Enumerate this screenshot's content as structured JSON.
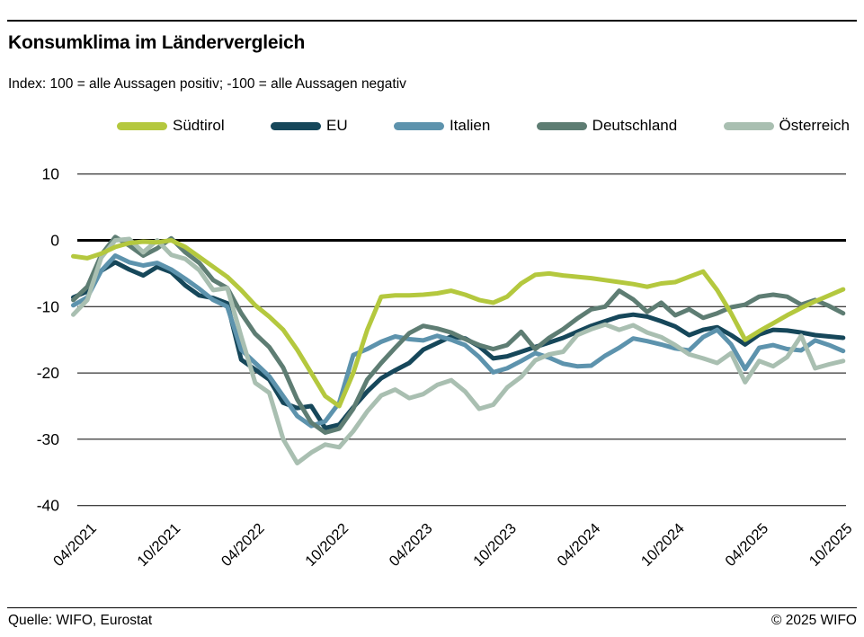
{
  "header": {
    "title": "Konsumklima im Ländervergleich",
    "subtitle": "Index: 100 = alle Aussagen positiv; -100 =  alle Aussagen negativ"
  },
  "footer": {
    "source": "Quelle: WIFO, Eurostat",
    "copyright": "© 2025 WIFO"
  },
  "chart_data": {
    "type": "line",
    "title": "Konsumklima im Ländervergleich",
    "legend_position": "top",
    "grid": "horizontal-only",
    "ylim": [
      -40,
      10
    ],
    "y_ticks": [
      10,
      0,
      -10,
      -20,
      -30,
      -40
    ],
    "zero_line_emphasized": true,
    "x_tick_labels": [
      "04/2021",
      "10/2021",
      "04/2022",
      "10/2022",
      "04/2023",
      "10/2023",
      "04/2024",
      "10/2024",
      "04/2025",
      "10/2025"
    ],
    "months": [
      "03/2021",
      "04/2021",
      "05/2021",
      "06/2021",
      "07/2021",
      "08/2021",
      "09/2021",
      "10/2021",
      "11/2021",
      "12/2021",
      "01/2022",
      "02/2022",
      "03/2022",
      "04/2022",
      "05/2022",
      "06/2022",
      "07/2022",
      "08/2022",
      "09/2022",
      "10/2022",
      "11/2022",
      "12/2022",
      "01/2023",
      "02/2023",
      "03/2023",
      "04/2023",
      "05/2023",
      "06/2023",
      "07/2023",
      "08/2023",
      "09/2023",
      "10/2023",
      "11/2023",
      "12/2023",
      "01/2024",
      "02/2024",
      "03/2024",
      "04/2024",
      "05/2024",
      "06/2024",
      "07/2024",
      "08/2024",
      "09/2024",
      "10/2024",
      "11/2024",
      "12/2024",
      "01/2025",
      "02/2025",
      "03/2025",
      "04/2025",
      "05/2025",
      "06/2025",
      "07/2025",
      "08/2025",
      "09/2025",
      "10/2025"
    ],
    "series": [
      {
        "name": "Südtirol",
        "color": "#b4c83e",
        "values": [
          -2.4,
          -2.7,
          -2.0,
          -1.0,
          -0.4,
          -0.2,
          -0.3,
          0.0,
          -1.0,
          -2.5,
          -4.0,
          -5.5,
          -7.5,
          -9.8,
          -11.5,
          -13.5,
          -16.5,
          -20.0,
          -23.5,
          -25.0,
          -20.0,
          -13.5,
          -8.5,
          -8.3,
          -8.3,
          -8.2,
          -8.0,
          -7.6,
          -8.2,
          -9.0,
          -9.4,
          -8.5,
          -6.5,
          -5.2,
          -5.0,
          -5.3,
          -5.5,
          -5.7,
          -6.0,
          -6.3,
          -6.6,
          -7.0,
          -6.5,
          -6.3,
          -5.5,
          -4.7,
          -7.5,
          -11.0,
          -15.0,
          -13.7,
          -12.5,
          -11.3,
          -10.2,
          -9.2,
          -8.3,
          -7.4
        ]
      },
      {
        "name": "EU",
        "color": "#16475a",
        "values": [
          -8.6,
          -7.7,
          -4.6,
          -3.3,
          -4.4,
          -5.3,
          -4.0,
          -4.8,
          -6.8,
          -8.3,
          -8.7,
          -9.5,
          -18.0,
          -19.5,
          -21.0,
          -24.5,
          -25.3,
          -25.0,
          -28.3,
          -27.8,
          -25.2,
          -22.8,
          -20.8,
          -19.6,
          -18.5,
          -16.5,
          -15.5,
          -14.5,
          -14.8,
          -16.0,
          -17.8,
          -17.5,
          -16.8,
          -16.1,
          -15.4,
          -14.7,
          -13.8,
          -12.9,
          -12.2,
          -11.5,
          -11.2,
          -11.5,
          -12.2,
          -13.0,
          -14.3,
          -13.5,
          -13.1,
          -14.3,
          -15.7,
          -14.2,
          -13.5,
          -13.6,
          -13.9,
          -14.3,
          -14.5,
          -14.7
        ]
      },
      {
        "name": "Italien",
        "color": "#5d93ad",
        "values": [
          -9.8,
          -8.6,
          -4.6,
          -2.3,
          -3.3,
          -3.8,
          -3.4,
          -4.4,
          -5.8,
          -7.3,
          -9.0,
          -10.0,
          -16.5,
          -18.5,
          -20.5,
          -23.5,
          -26.5,
          -28.0,
          -27.3,
          -24.5,
          -17.3,
          -16.4,
          -15.3,
          -14.5,
          -14.9,
          -15.1,
          -14.4,
          -15.0,
          -15.8,
          -17.6,
          -19.9,
          -19.3,
          -18.2,
          -17.0,
          -17.7,
          -18.6,
          -19.0,
          -18.9,
          -17.4,
          -16.2,
          -14.8,
          -15.2,
          -15.7,
          -16.3,
          -16.6,
          -14.6,
          -13.5,
          -15.7,
          -19.4,
          -16.2,
          -15.8,
          -16.4,
          -16.6,
          -15.1,
          -15.8,
          -16.7
        ]
      },
      {
        "name": "Deutschland",
        "color": "#5e7d73",
        "values": [
          -9.0,
          -7.0,
          -2.2,
          0.5,
          -0.8,
          -2.3,
          -1.2,
          0.3,
          -1.8,
          -3.4,
          -6.0,
          -7.2,
          -11.0,
          -14.1,
          -16.1,
          -19.2,
          -24.0,
          -27.5,
          -29.0,
          -28.4,
          -25.4,
          -21.0,
          -18.5,
          -16.2,
          -14.0,
          -12.9,
          -13.3,
          -13.9,
          -14.9,
          -15.8,
          -16.4,
          -15.8,
          -13.8,
          -16.4,
          -14.7,
          -13.4,
          -11.8,
          -10.4,
          -10.0,
          -7.6,
          -8.9,
          -10.8,
          -9.4,
          -11.3,
          -10.4,
          -11.7,
          -11.0,
          -10.1,
          -9.7,
          -8.5,
          -8.2,
          -8.5,
          -9.7,
          -9.0,
          -9.9,
          -11.0
        ]
      },
      {
        "name": "Österreich",
        "color": "#a9bfb1",
        "values": [
          -11.2,
          -9.0,
          -2.6,
          0.0,
          0.2,
          -1.8,
          0.0,
          -2.2,
          -2.8,
          -4.5,
          -7.5,
          -7.2,
          -14.5,
          -21.5,
          -23.0,
          -30.0,
          -33.6,
          -32.0,
          -30.8,
          -31.2,
          -28.8,
          -25.8,
          -23.4,
          -22.5,
          -23.8,
          -23.2,
          -21.8,
          -21.1,
          -22.8,
          -25.4,
          -24.8,
          -22.2,
          -20.6,
          -18.1,
          -17.2,
          -16.8,
          -14.3,
          -13.4,
          -12.7,
          -13.5,
          -12.8,
          -13.9,
          -14.6,
          -15.8,
          -17.2,
          -17.8,
          -18.5,
          -17.0,
          -21.4,
          -18.2,
          -19.0,
          -17.6,
          -14.4,
          -19.3,
          -18.7,
          -18.2
        ]
      }
    ]
  },
  "legend": {
    "items": [
      {
        "label": "Südtirol"
      },
      {
        "label": "EU"
      },
      {
        "label": "Italien"
      },
      {
        "label": "Deutschland"
      },
      {
        "label": "Österreich"
      }
    ]
  }
}
